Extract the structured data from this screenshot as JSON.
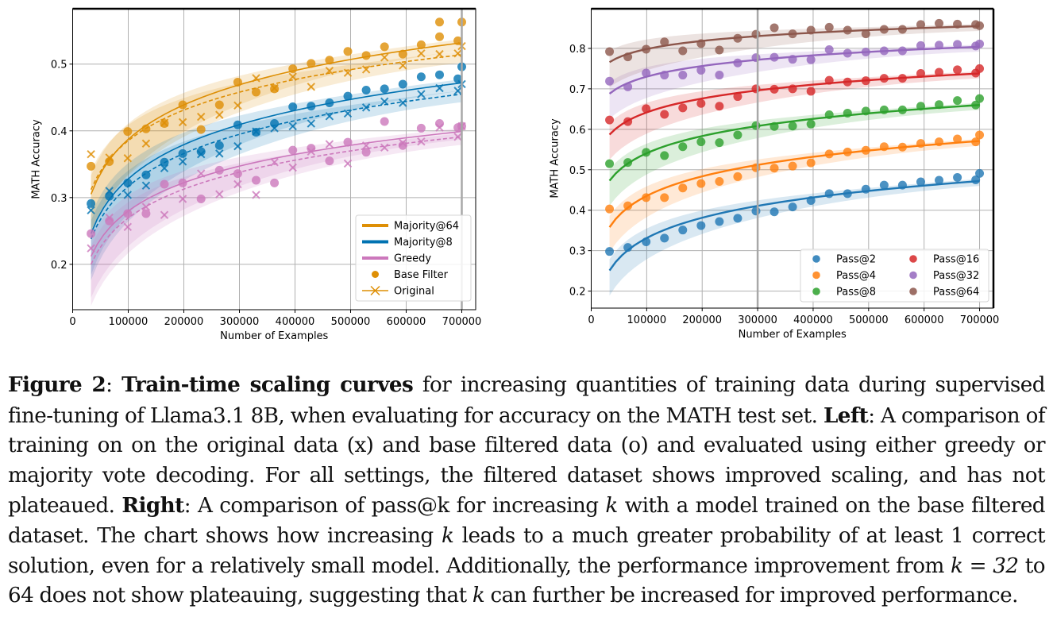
{
  "chart_data": [
    {
      "type": "scatter",
      "panel": "left",
      "xlabel": "Number of Examples",
      "ylabel": "MATH Accuracy",
      "xlim": [
        0,
        725000
      ],
      "ylim": [
        0.132,
        0.583
      ],
      "xticks": [
        0,
        100000,
        200000,
        300000,
        400000,
        500000,
        600000,
        700000
      ],
      "xtick_labels": [
        "0",
        "100000",
        "200000",
        "300000",
        "400000",
        "500000",
        "600000",
        "700000"
      ],
      "yticks": [
        0.2,
        0.3,
        0.4,
        0.5
      ],
      "ytick_labels": [
        "0.2",
        "0.3",
        "0.4",
        "0.5"
      ],
      "grid": true,
      "legend_position": "bottom-right",
      "legend": [
        {
          "label": "Majority@64",
          "kind": "thick-line",
          "color": "#de8f05"
        },
        {
          "label": "Majority@8",
          "kind": "thick-line",
          "color": "#0173b2"
        },
        {
          "label": "Greedy",
          "kind": "thick-line",
          "color": "#cc78bc"
        },
        {
          "label": "Base Filter",
          "kind": "dot",
          "color": "#de8f05"
        },
        {
          "label": "Original",
          "kind": "x-line",
          "color": "#de8f05"
        }
      ],
      "x": [
        33000,
        66000,
        99000,
        132000,
        165000,
        198000,
        231000,
        264000,
        297000,
        330000,
        363000,
        396000,
        429000,
        462000,
        495000,
        528000,
        561000,
        594000,
        627000,
        660000,
        693000,
        700000
      ],
      "series": [
        {
          "name": "Majority@64 (Base Filter)",
          "color": "#de8f05",
          "marker": "o",
          "fit": "solid",
          "values": [
            0.347,
            0.354,
            0.399,
            0.403,
            0.411,
            0.439,
            0.402,
            0.439,
            0.473,
            0.458,
            0.463,
            0.493,
            0.501,
            0.506,
            0.519,
            0.513,
            0.526,
            0.515,
            0.529,
            0.541,
            0.535,
            0.563
          ],
          "extra": [
            [
              660000,
              0.563
            ]
          ],
          "fit_params": {
            "y0": 0.305,
            "y1": 0.532
          }
        },
        {
          "name": "Majority@64 (Original)",
          "color": "#de8f05",
          "marker": "x",
          "fit": "dashed",
          "values": [
            0.365,
            0.36,
            0.359,
            0.381,
            0.412,
            0.413,
            0.421,
            0.424,
            0.438,
            0.479,
            0.464,
            0.481,
            0.466,
            0.49,
            0.487,
            0.492,
            0.51,
            0.498,
            0.516,
            0.515,
            0.516,
            0.527
          ],
          "fit_params": {
            "y0": 0.312,
            "y1": 0.514
          }
        },
        {
          "name": "Majority@8 (Base Filter)",
          "color": "#0173b2",
          "marker": "o",
          "fit": "solid",
          "values": [
            0.291,
            0.302,
            0.322,
            0.334,
            0.353,
            0.366,
            0.369,
            0.378,
            0.409,
            0.398,
            0.411,
            0.436,
            0.437,
            0.442,
            0.452,
            0.461,
            0.463,
            0.47,
            0.481,
            0.484,
            0.478,
            0.496
          ],
          "fit_params": {
            "y0": 0.246,
            "y1": 0.472
          }
        },
        {
          "name": "Majority@8 (Original)",
          "color": "#0173b2",
          "marker": "x",
          "fit": "dashed",
          "values": [
            0.281,
            0.31,
            0.304,
            0.318,
            0.344,
            0.354,
            0.365,
            0.366,
            0.377,
            0.399,
            0.404,
            0.407,
            0.411,
            0.422,
            0.426,
            0.435,
            0.444,
            0.442,
            0.455,
            0.464,
            0.46,
            0.47
          ],
          "fit_params": {
            "y0": 0.238,
            "y1": 0.455
          }
        },
        {
          "name": "Greedy (Base Filter)",
          "color": "#cc78bc",
          "marker": "o",
          "fit": "solid",
          "values": [
            0.246,
            0.265,
            0.276,
            0.276,
            0.32,
            0.322,
            0.298,
            0.341,
            0.336,
            0.326,
            0.322,
            0.371,
            0.374,
            0.355,
            0.383,
            0.368,
            0.414,
            0.378,
            0.404,
            0.411,
            0.405,
            0.407
          ],
          "fit_params": {
            "y0": 0.212,
            "y1": 0.399
          }
        },
        {
          "name": "Greedy (Original)",
          "color": "#cc78bc",
          "marker": "x",
          "fit": "dashed",
          "values": [
            0.224,
            0.27,
            0.256,
            0.286,
            0.274,
            0.298,
            0.336,
            0.305,
            0.32,
            0.304,
            0.353,
            0.345,
            0.369,
            0.38,
            0.351,
            0.378,
            0.375,
            0.382,
            0.384,
            0.405,
            0.391,
            0.407
          ],
          "fit_params": {
            "y0": 0.2,
            "y1": 0.391
          }
        }
      ]
    },
    {
      "type": "scatter",
      "panel": "right",
      "xlabel": "Number of Examples",
      "ylabel": "MATH Accuracy",
      "xlim": [
        0,
        725000
      ],
      "ylim": [
        0.158,
        0.898
      ],
      "xticks": [
        0,
        100000,
        200000,
        300000,
        400000,
        500000,
        600000,
        700000
      ],
      "xtick_labels": [
        "0",
        "100000",
        "200000",
        "300000",
        "400000",
        "500000",
        "600000",
        "700000"
      ],
      "yticks": [
        0.2,
        0.3,
        0.4,
        0.5,
        0.6,
        0.7,
        0.8
      ],
      "ytick_labels": [
        "0.2",
        "0.3",
        "0.4",
        "0.5",
        "0.6",
        "0.7",
        "0.8"
      ],
      "grid": true,
      "legend_position": "bottom-right",
      "legend_columns": 2,
      "x": [
        33000,
        66000,
        99000,
        132000,
        165000,
        198000,
        231000,
        264000,
        297000,
        330000,
        363000,
        396000,
        429000,
        462000,
        495000,
        528000,
        561000,
        594000,
        627000,
        660000,
        693000,
        700000
      ],
      "series": [
        {
          "name": "Pass@2",
          "color": "#1f77b4",
          "values": [
            0.298,
            0.308,
            0.322,
            0.331,
            0.351,
            0.362,
            0.372,
            0.38,
            0.398,
            0.396,
            0.408,
            0.424,
            0.441,
            0.441,
            0.452,
            0.462,
            0.462,
            0.47,
            0.474,
            0.481,
            0.475,
            0.491
          ],
          "fit_params": {
            "y0": 0.251,
            "y1": 0.472
          }
        },
        {
          "name": "Pass@4",
          "color": "#ff7f0e",
          "values": [
            0.403,
            0.411,
            0.431,
            0.431,
            0.455,
            0.466,
            0.471,
            0.483,
            0.505,
            0.504,
            0.509,
            0.517,
            0.539,
            0.544,
            0.548,
            0.557,
            0.556,
            0.565,
            0.569,
            0.576,
            0.569,
            0.586
          ],
          "fit_params": {
            "y0": 0.358,
            "y1": 0.571
          }
        },
        {
          "name": "Pass@8",
          "color": "#2ca02c",
          "values": [
            0.515,
            0.518,
            0.543,
            0.535,
            0.557,
            0.569,
            0.567,
            0.586,
            0.609,
            0.607,
            0.608,
            0.613,
            0.636,
            0.64,
            0.645,
            0.648,
            0.648,
            0.657,
            0.661,
            0.671,
            0.66,
            0.676
          ],
          "fit_params": {
            "y0": 0.473,
            "y1": 0.66
          }
        },
        {
          "name": "Pass@16",
          "color": "#d62728",
          "values": [
            0.623,
            0.619,
            0.651,
            0.637,
            0.653,
            0.664,
            0.657,
            0.681,
            0.7,
            0.699,
            0.7,
            0.694,
            0.721,
            0.717,
            0.72,
            0.726,
            0.726,
            0.738,
            0.741,
            0.747,
            0.739,
            0.75
          ],
          "fit_params": {
            "y0": 0.587,
            "y1": 0.738
          }
        },
        {
          "name": "Pass@32",
          "color": "#9467bd",
          "values": [
            0.719,
            0.705,
            0.739,
            0.734,
            0.734,
            0.746,
            0.734,
            0.764,
            0.777,
            0.778,
            0.773,
            0.772,
            0.797,
            0.788,
            0.791,
            0.794,
            0.794,
            0.807,
            0.808,
            0.81,
            0.806,
            0.811
          ],
          "fit_params": {
            "y0": 0.688,
            "y1": 0.804
          }
        },
        {
          "name": "Pass@64",
          "color": "#8c564b",
          "values": [
            0.792,
            0.779,
            0.798,
            0.816,
            0.794,
            0.812,
            0.796,
            0.825,
            0.835,
            0.851,
            0.836,
            0.845,
            0.852,
            0.845,
            0.836,
            0.847,
            0.847,
            0.859,
            0.862,
            0.86,
            0.859,
            0.856
          ],
          "fit_params": {
            "y0": 0.766,
            "y1": 0.855
          }
        }
      ]
    }
  ],
  "caption": {
    "figure_label": "Figure 2",
    "title": "Train-time scaling curves",
    "text_1": " for increasing quantities of training data during supervised fine-tuning of Llama3.1 8B, when evaluating for accuracy on the MATH test set. ",
    "left_label": "Left",
    "text_2": ": A comparison of training on on the original data (x) and base filtered data (o) and evaluated using either greedy or majority vote decoding. For all settings, the filtered dataset shows improved scaling, and has not plateaued. ",
    "right_label": "Right",
    "text_3": ": A comparison of pass@k for increasing ",
    "k": "k",
    "text_4": " with a model trained on the base filtered dataset. The chart shows how increasing ",
    "text_5": " leads to a much greater probability of at least 1 correct solution, even for a relatively small model. Additionally, the performance improvement from ",
    "k_eq": "k = 32",
    "text_6": " to 64 does not show plateauing, suggesting that ",
    "text_7": " can further be increased for improved performance."
  }
}
